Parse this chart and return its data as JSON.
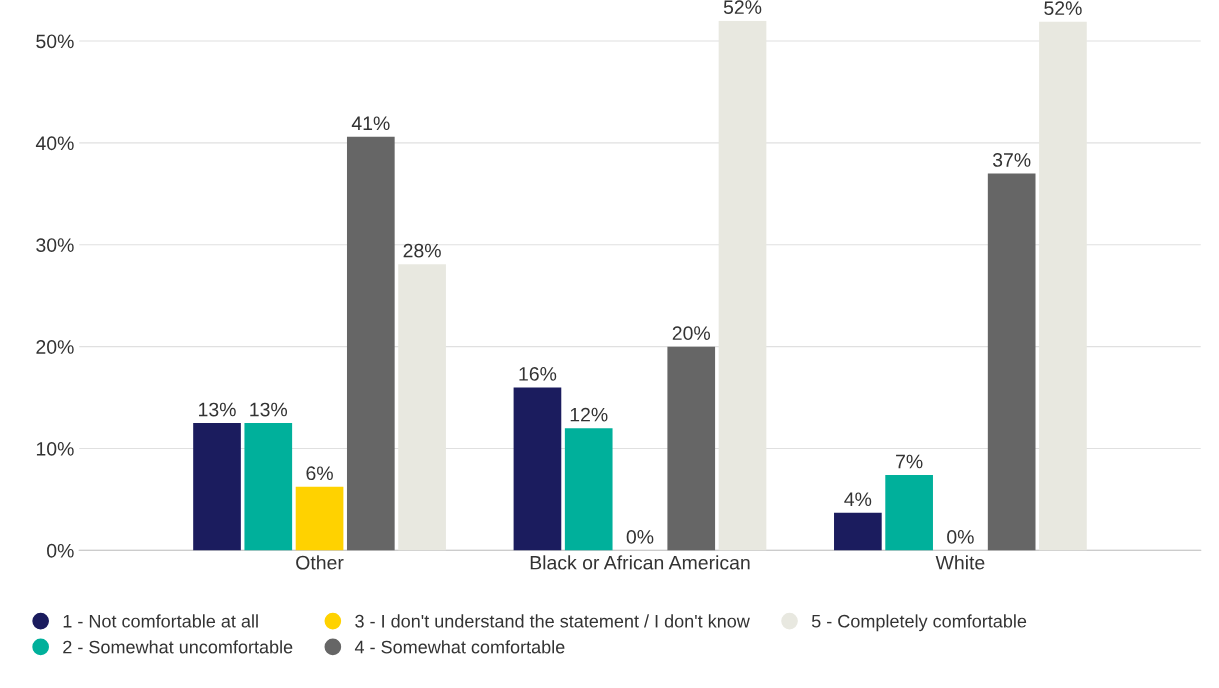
{
  "chart_data": {
    "type": "bar",
    "categories": [
      "Other",
      "Black or African American",
      "White"
    ],
    "series": [
      {
        "name": "1 - Not comfortable at all",
        "color": "#1b1c5e",
        "values": [
          12.5,
          16,
          3.7
        ],
        "value_labels": [
          "13%",
          "16%",
          "4%"
        ]
      },
      {
        "name": "2 - Somewhat uncomfortable",
        "color": "#00b09b",
        "values": [
          12.5,
          12,
          7.4
        ],
        "value_labels": [
          "13%",
          "12%",
          "7%"
        ]
      },
      {
        "name": "3 - I don't understand the statement / I don't know",
        "color": "#ffd200",
        "values": [
          6.25,
          0,
          0
        ],
        "value_labels": [
          "6%",
          "0%",
          "0%"
        ]
      },
      {
        "name": "4 - Somewhat comfortable",
        "color": "#666666",
        "values": [
          40.6,
          20,
          37
        ],
        "value_labels": [
          "41%",
          "20%",
          "37%"
        ]
      },
      {
        "name": "5 - Completely comfortable",
        "color": "#e8e8e0",
        "values": [
          28.1,
          52,
          51.9
        ],
        "value_labels": [
          "28%",
          "52%",
          "52%"
        ]
      }
    ],
    "ylim": [
      0,
      52
    ],
    "yticks": [
      {
        "value": 0,
        "label": "0%"
      },
      {
        "value": 10,
        "label": "10%"
      },
      {
        "value": 20,
        "label": "20%"
      },
      {
        "value": 30,
        "label": "30%"
      },
      {
        "value": 40,
        "label": "40%"
      },
      {
        "value": 50,
        "label": "50%"
      }
    ],
    "grid": "y",
    "legend": "bottom left"
  }
}
